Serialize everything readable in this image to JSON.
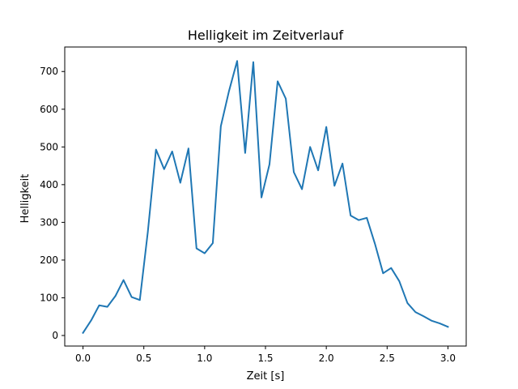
{
  "chart_data": {
    "type": "line",
    "title": "Helligkeit im Zeitverlauf",
    "xlabel": "Zeit [s]",
    "ylabel": "Helligkeit",
    "xlim": [
      -0.15,
      3.15
    ],
    "ylim": [
      -28,
      765
    ],
    "xticks": [
      0.0,
      0.5,
      1.0,
      1.5,
      2.0,
      2.5,
      3.0
    ],
    "xtick_labels": [
      "0.0",
      "0.5",
      "1.0",
      "1.5",
      "2.0",
      "2.5",
      "3.0"
    ],
    "yticks": [
      0,
      100,
      200,
      300,
      400,
      500,
      600,
      700
    ],
    "ytick_labels": [
      "0",
      "100",
      "200",
      "300",
      "400",
      "500",
      "600",
      "700"
    ],
    "grid": false,
    "series_color": "#1f77b4",
    "series": [
      {
        "x": [
          0.0,
          0.067,
          0.133,
          0.2,
          0.267,
          0.333,
          0.4,
          0.467,
          0.533,
          0.6,
          0.667,
          0.733,
          0.8,
          0.867,
          0.933,
          1.0,
          1.067,
          1.133,
          1.2,
          1.267,
          1.333,
          1.4,
          1.467,
          1.533,
          1.6,
          1.667,
          1.733,
          1.8,
          1.867,
          1.933,
          2.0,
          2.067,
          2.133,
          2.2,
          2.267,
          2.333,
          2.4,
          2.467,
          2.533,
          2.6,
          2.667,
          2.733,
          2.8,
          2.867,
          2.933,
          3.0
        ],
        "y": [
          7,
          40,
          80,
          76,
          105,
          147,
          102,
          94,
          275,
          493,
          441,
          488,
          405,
          496,
          231,
          218,
          245,
          555,
          648,
          728,
          484,
          725,
          366,
          454,
          674,
          628,
          433,
          388,
          500,
          438,
          553,
          397,
          456,
          318,
          306,
          312,
          243,
          165,
          179,
          144,
          86,
          62,
          51,
          39,
          32,
          23
        ]
      }
    ]
  }
}
